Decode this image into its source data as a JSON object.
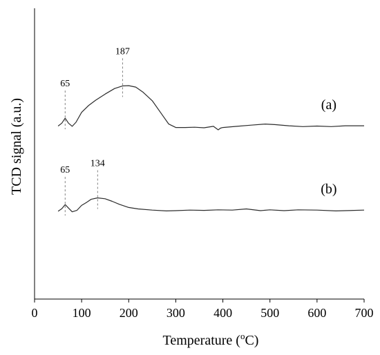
{
  "chart_data": {
    "type": "line",
    "xlabel": "Temperature (",
    "xlabel_sup": "o",
    "xlabel_tail": "C)",
    "ylabel": "TCD signal (a.u.)",
    "xlim": [
      0,
      700
    ],
    "ylim": [
      0,
      1
    ],
    "x_ticks": [
      "0",
      "100",
      "200",
      "300",
      "400",
      "500",
      "600",
      "700"
    ],
    "grid": false,
    "colors": {
      "line": "#2b2b2b",
      "marker_line": "#808080",
      "axis": "#000000"
    },
    "series": [
      {
        "label_text": "(a)",
        "x": [
          50,
          58,
          65,
          72,
          80,
          88,
          100,
          115,
          130,
          150,
          170,
          187,
          200,
          215,
          230,
          250,
          270,
          285,
          300,
          320,
          340,
          360,
          380,
          390,
          395,
          400,
          430,
          460,
          490,
          510,
          540,
          570,
          600,
          630,
          660,
          700
        ],
        "values": [
          0.595,
          0.605,
          0.622,
          0.605,
          0.594,
          0.608,
          0.642,
          0.666,
          0.684,
          0.705,
          0.724,
          0.733,
          0.734,
          0.729,
          0.712,
          0.682,
          0.636,
          0.602,
          0.59,
          0.59,
          0.591,
          0.589,
          0.594,
          0.582,
          0.588,
          0.59,
          0.594,
          0.598,
          0.602,
          0.6,
          0.596,
          0.593,
          0.595,
          0.593,
          0.596,
          0.596
        ],
        "peak_annotations": [
          {
            "x": 65,
            "label": "65"
          },
          {
            "x": 187,
            "label": "187"
          }
        ]
      },
      {
        "label_text": "(b)",
        "x": [
          50,
          58,
          65,
          72,
          80,
          90,
          100,
          110,
          120,
          134,
          150,
          165,
          180,
          200,
          220,
          250,
          280,
          300,
          330,
          360,
          390,
          420,
          450,
          480,
          500,
          530,
          560,
          600,
          640,
          700
        ],
        "values": [
          0.302,
          0.311,
          0.325,
          0.313,
          0.3,
          0.305,
          0.322,
          0.332,
          0.343,
          0.348,
          0.345,
          0.336,
          0.326,
          0.315,
          0.31,
          0.306,
          0.303,
          0.304,
          0.306,
          0.305,
          0.307,
          0.306,
          0.31,
          0.304,
          0.307,
          0.304,
          0.307,
          0.306,
          0.303,
          0.306
        ],
        "peak_annotations": [
          {
            "x": 65,
            "label": "65"
          },
          {
            "x": 134,
            "label": "134"
          }
        ]
      }
    ]
  }
}
